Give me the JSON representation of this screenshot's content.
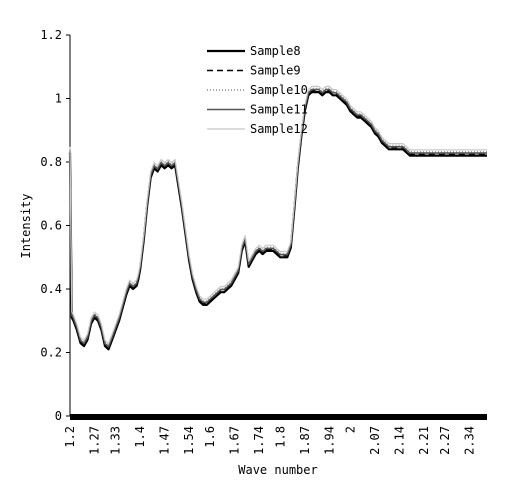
{
  "chart_data": {
    "type": "line",
    "xlabel": "Wave number",
    "ylabel": "Intensity",
    "ylim": [
      0,
      1.2
    ],
    "xlim": [
      1.2,
      2.39
    ],
    "legend_position": "top-center",
    "grid": false,
    "x_ticks": [
      "1.2",
      "1.27",
      "1.33",
      "1.4",
      "1.47",
      "1.54",
      "1.6",
      "1.67",
      "1.74",
      "1.8",
      "1.87",
      "1.94",
      "2",
      "2.07",
      "2.14",
      "2.21",
      "2.27",
      "2.34"
    ],
    "y_ticks": [
      "0",
      "0.2",
      "0.4",
      "0.6",
      "0.8",
      "1",
      "1.2"
    ],
    "base_x": [
      1.2,
      1.205,
      1.21,
      1.22,
      1.23,
      1.24,
      1.25,
      1.26,
      1.27,
      1.28,
      1.29,
      1.3,
      1.31,
      1.32,
      1.33,
      1.34,
      1.35,
      1.36,
      1.37,
      1.38,
      1.39,
      1.395,
      1.4,
      1.41,
      1.42,
      1.43,
      1.44,
      1.45,
      1.46,
      1.47,
      1.48,
      1.49,
      1.5,
      1.51,
      1.52,
      1.53,
      1.54,
      1.55,
      1.56,
      1.57,
      1.58,
      1.59,
      1.6,
      1.61,
      1.62,
      1.63,
      1.64,
      1.65,
      1.66,
      1.67,
      1.68,
      1.69,
      1.7,
      1.71,
      1.72,
      1.73,
      1.74,
      1.75,
      1.76,
      1.77,
      1.78,
      1.79,
      1.8,
      1.81,
      1.82,
      1.83,
      1.84,
      1.85,
      1.86,
      1.87,
      1.88,
      1.89,
      1.9,
      1.91,
      1.92,
      1.93,
      1.94,
      1.95,
      1.96,
      1.97,
      1.98,
      1.99,
      2.0,
      2.01,
      2.02,
      2.03,
      2.04,
      2.05,
      2.06,
      2.07,
      2.08,
      2.09,
      2.1,
      2.11,
      2.12,
      2.13,
      2.14,
      2.15,
      2.16,
      2.17,
      2.18,
      2.19,
      2.2,
      2.21,
      2.22,
      2.23,
      2.24,
      2.25,
      2.26,
      2.27,
      2.28,
      2.29,
      2.3,
      2.31,
      2.32,
      2.33,
      2.34,
      2.35,
      2.36,
      2.37,
      2.38,
      2.39
    ],
    "base_y": [
      0.83,
      0.31,
      0.3,
      0.27,
      0.23,
      0.22,
      0.24,
      0.29,
      0.31,
      0.3,
      0.27,
      0.22,
      0.21,
      0.24,
      0.27,
      0.3,
      0.34,
      0.38,
      0.41,
      0.4,
      0.41,
      0.43,
      0.46,
      0.55,
      0.66,
      0.75,
      0.78,
      0.77,
      0.79,
      0.78,
      0.79,
      0.78,
      0.79,
      0.72,
      0.65,
      0.57,
      0.49,
      0.43,
      0.39,
      0.36,
      0.35,
      0.35,
      0.36,
      0.37,
      0.38,
      0.39,
      0.39,
      0.4,
      0.41,
      0.43,
      0.45,
      0.52,
      0.55,
      0.47,
      0.49,
      0.51,
      0.52,
      0.51,
      0.52,
      0.52,
      0.52,
      0.51,
      0.5,
      0.5,
      0.5,
      0.53,
      0.65,
      0.78,
      0.88,
      0.96,
      1.01,
      1.02,
      1.02,
      1.02,
      1.01,
      1.02,
      1.02,
      1.01,
      1.01,
      1.0,
      0.99,
      0.98,
      0.96,
      0.95,
      0.94,
      0.94,
      0.93,
      0.92,
      0.91,
      0.89,
      0.88,
      0.86,
      0.85,
      0.84,
      0.84,
      0.84,
      0.84,
      0.84,
      0.83,
      0.82,
      0.82,
      0.82,
      0.82,
      0.82,
      0.82,
      0.82,
      0.82,
      0.82,
      0.82,
      0.82,
      0.82,
      0.82,
      0.82,
      0.82,
      0.82,
      0.82,
      0.82,
      0.82,
      0.82,
      0.82,
      0.82,
      0.82
    ],
    "series": [
      {
        "name": "Sample8",
        "color": "#000000",
        "dash": "",
        "width": 2.2,
        "offset": 0.0
      },
      {
        "name": "Sample9",
        "color": "#000000",
        "dash": "6,4",
        "width": 1.4,
        "offset": 0.005
      },
      {
        "name": "Sample10",
        "color": "#8c8c8c",
        "dash": "1,2",
        "width": 1.4,
        "offset": 0.012
      },
      {
        "name": "Sample11",
        "color": "#555555",
        "dash": "",
        "width": 1.6,
        "offset": 0.008
      },
      {
        "name": "Sample12",
        "color": "#c8c8c8",
        "dash": "",
        "width": 1.2,
        "offset": 0.018
      }
    ]
  }
}
